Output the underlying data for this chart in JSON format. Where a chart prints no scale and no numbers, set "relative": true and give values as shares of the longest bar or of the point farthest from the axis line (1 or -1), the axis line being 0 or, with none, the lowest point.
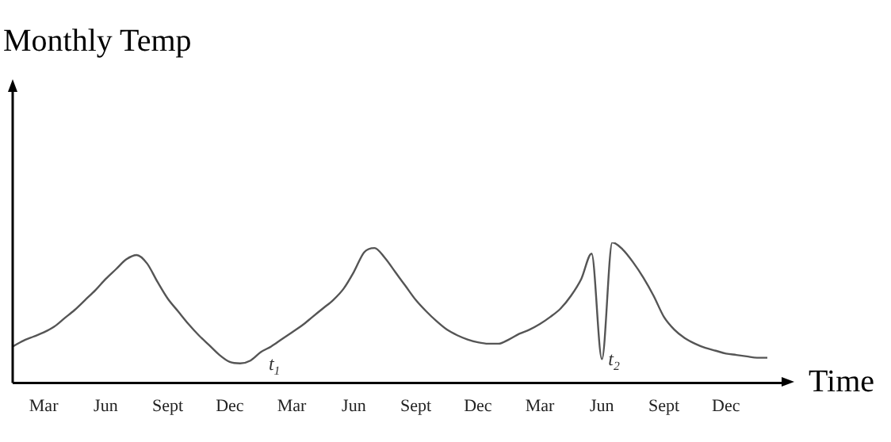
{
  "chart_data": {
    "type": "line",
    "relative": true,
    "title": "Monthly Temp",
    "xlabel": "Time",
    "categories": [
      null,
      null,
      null,
      "Mar",
      null,
      null,
      null,
      null,
      null,
      "Jun",
      null,
      null,
      null,
      null,
      null,
      "Sept",
      null,
      null,
      null,
      null,
      null,
      "Dec",
      null,
      null,
      null,
      null,
      null,
      "Mar",
      null,
      null,
      null,
      null,
      null,
      "Jun",
      null,
      null,
      null,
      null,
      null,
      "Sept",
      null,
      null,
      null,
      null,
      null,
      "Dec",
      null,
      null,
      null,
      null,
      null,
      "Mar",
      null,
      null,
      null,
      null,
      null,
      "Jun",
      null,
      null,
      null,
      null,
      null,
      "Sept",
      null,
      null,
      null,
      null,
      null,
      "Dec",
      null,
      null,
      null,
      null
    ],
    "series": [
      {
        "color": "#555555",
        "values": [
          0.26,
          0.3,
          0.33,
          0.36,
          0.4,
          0.46,
          0.52,
          0.59,
          0.66,
          0.74,
          0.81,
          0.88,
          0.91,
          0.85,
          0.72,
          0.6,
          0.51,
          0.42,
          0.34,
          0.27,
          0.2,
          0.15,
          0.14,
          0.16,
          0.22,
          0.26,
          0.31,
          0.36,
          0.41,
          0.47,
          0.53,
          0.59,
          0.67,
          0.79,
          0.93,
          0.96,
          0.89,
          0.79,
          0.69,
          0.59,
          0.51,
          0.44,
          0.38,
          0.34,
          0.31,
          0.29,
          0.28,
          0.28,
          0.31,
          0.35,
          0.38,
          0.42,
          0.47,
          0.53,
          0.62,
          0.74,
          0.92,
          0.17,
          1.0,
          0.95,
          0.86,
          0.75,
          0.62,
          0.47,
          0.38,
          0.32,
          0.28,
          0.25,
          0.23,
          0.21,
          0.2,
          0.19,
          0.18,
          0.18
        ]
      }
    ],
    "annotations": [
      "t$_{1}$",
      "t$_{2}$"
    ],
    "grid": false,
    "legend": false,
    "marker": "none",
    "line_style": "solid"
  }
}
